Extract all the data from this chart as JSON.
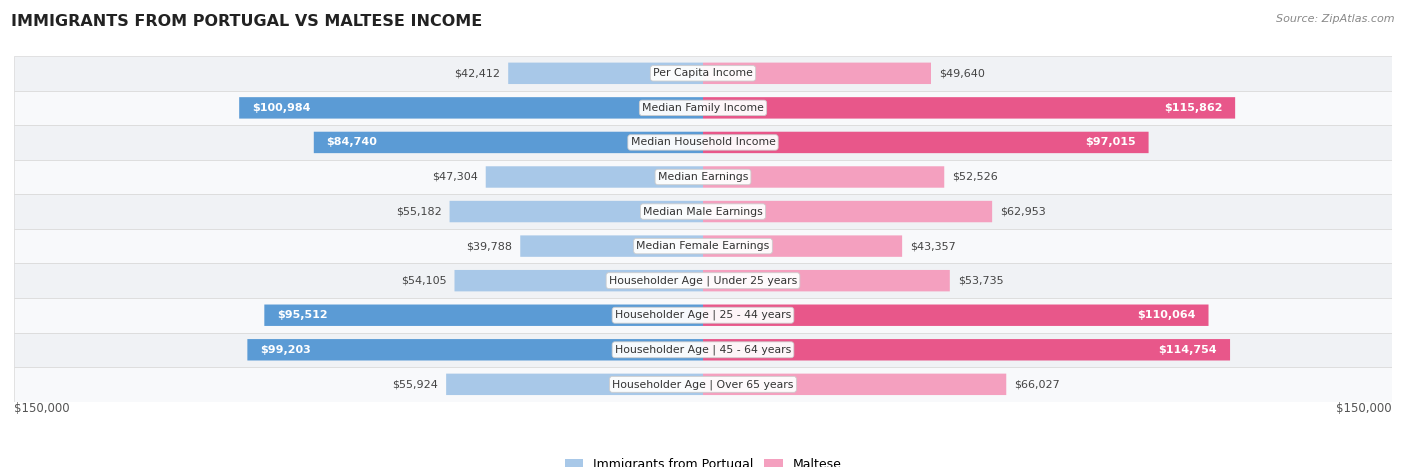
{
  "title": "IMMIGRANTS FROM PORTUGAL VS MALTESE INCOME",
  "source": "Source: ZipAtlas.com",
  "categories": [
    "Per Capita Income",
    "Median Family Income",
    "Median Household Income",
    "Median Earnings",
    "Median Male Earnings",
    "Median Female Earnings",
    "Householder Age | Under 25 years",
    "Householder Age | 25 - 44 years",
    "Householder Age | 45 - 64 years",
    "Householder Age | Over 65 years"
  ],
  "portugal_values": [
    42412,
    100984,
    84740,
    47304,
    55182,
    39788,
    54105,
    95512,
    99203,
    55924
  ],
  "maltese_values": [
    49640,
    115862,
    97015,
    52526,
    62953,
    43357,
    53735,
    110064,
    114754,
    66027
  ],
  "portugal_labels": [
    "$42,412",
    "$100,984",
    "$84,740",
    "$47,304",
    "$55,182",
    "$39,788",
    "$54,105",
    "$95,512",
    "$99,203",
    "$55,924"
  ],
  "maltese_labels": [
    "$49,640",
    "$115,862",
    "$97,015",
    "$52,526",
    "$62,953",
    "$43,357",
    "$53,735",
    "$110,064",
    "$114,754",
    "$66,027"
  ],
  "portugal_color_dark": "#5b9bd5",
  "portugal_color_light": "#a8c8e8",
  "maltese_color_dark": "#e8578a",
  "maltese_color_light": "#f4a0bf",
  "max_value": 150000,
  "xlabel_left": "$150,000",
  "xlabel_right": "$150,000",
  "legend_portugal": "Immigrants from Portugal",
  "legend_maltese": "Maltese",
  "bg_color": "#ffffff",
  "inside_threshold": 68000
}
